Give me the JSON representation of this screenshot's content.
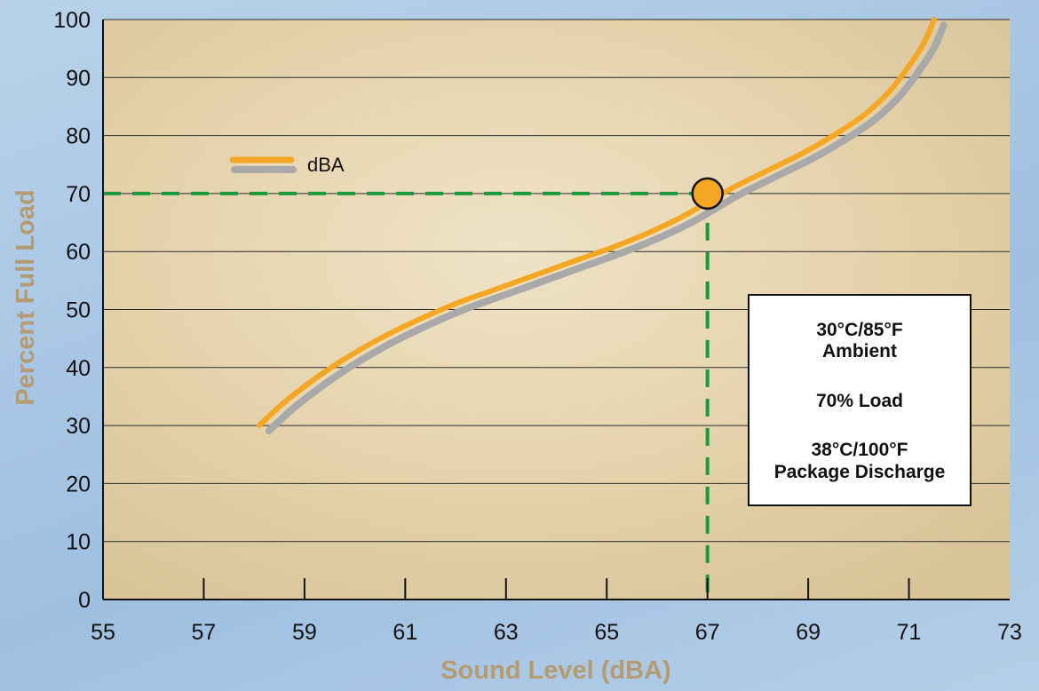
{
  "chart_data": {
    "type": "line",
    "xlabel": "Sound Level (dBA)",
    "ylabel": "Percent Full Load",
    "xlim": [
      55,
      73
    ],
    "ylim": [
      0,
      100
    ],
    "x_ticks": [
      "55",
      "57",
      "59",
      "61",
      "63",
      "65",
      "67",
      "69",
      "71",
      "73"
    ],
    "y_ticks": [
      "0",
      "10",
      "20",
      "30",
      "40",
      "50",
      "60",
      "70",
      "80",
      "90",
      "100"
    ],
    "grid": "horizontal",
    "legend_position": "top-left",
    "series": [
      {
        "name": "dBA",
        "color": "#f5a623",
        "shadow_color": "#a9a9a9",
        "x": [
          58.1,
          58.6,
          59.2,
          59.8,
          60.5,
          61.2,
          62.0,
          62.8,
          63.6,
          64.4,
          65.2,
          65.9,
          66.5,
          67.0,
          67.5,
          68.2,
          68.9,
          69.5,
          70.1,
          70.6,
          71.0,
          71.3,
          71.5
        ],
        "y": [
          30,
          34,
          38,
          41.5,
          45,
          48,
          51,
          53.5,
          56,
          58.5,
          61,
          63.5,
          66,
          68.5,
          71,
          74,
          77,
          80,
          83.5,
          87.5,
          92,
          96,
          100
        ]
      }
    ],
    "marker": {
      "x": 67,
      "y": 70,
      "color": "#f5a623"
    },
    "reference_lines": {
      "x": 67,
      "y": 70,
      "color": "#1a9a3c"
    }
  },
  "legend": {
    "label": "dBA"
  },
  "annotation": {
    "line1": "30°C/85°F",
    "line2": "Ambient",
    "line3": "70% Load",
    "line4": "38°C/100°F",
    "line5": "Package Discharge"
  }
}
